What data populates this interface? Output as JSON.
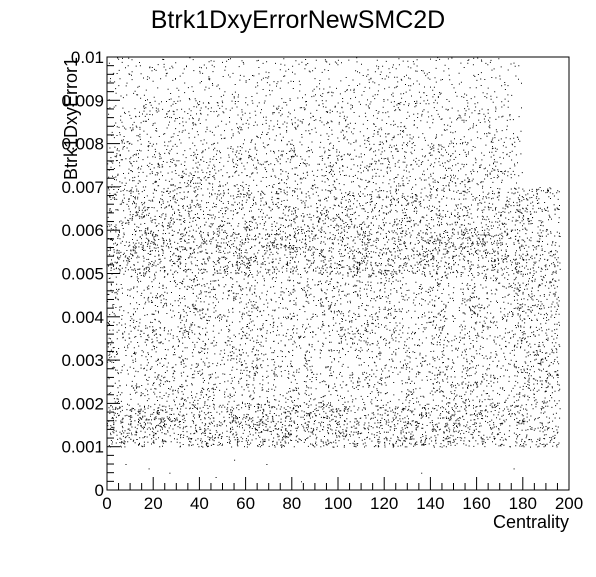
{
  "chart_data": {
    "type": "heatmap",
    "title": "Btrk1DxyErrorNewSMC2D",
    "xlabel": "Centrality",
    "ylabel": "Btrk1DxyError1",
    "xlim": [
      0,
      200
    ],
    "ylim": [
      0,
      0.01
    ],
    "x_ticks": [
      "0",
      "20",
      "40",
      "60",
      "80",
      "100",
      "120",
      "140",
      "160",
      "180",
      "200"
    ],
    "y_ticks": [
      "0",
      "0.001",
      "0.002",
      "0.003",
      "0.004",
      "0.005",
      "0.006",
      "0.007",
      "0.008",
      "0.009",
      "0.01"
    ],
    "grid": false,
    "legend": "none",
    "point_color": "#000000",
    "density_bands": [
      {
        "y_range": [
          0.001,
          0.002
        ],
        "x_range": [
          0,
          180
        ],
        "density": 0.55
      },
      {
        "y_range": [
          0.002,
          0.005
        ],
        "x_range": [
          0,
          180
        ],
        "density": 0.85
      },
      {
        "y_range": [
          0.005,
          0.006
        ],
        "x_range": [
          0,
          180
        ],
        "density": 0.55
      },
      {
        "y_range": [
          0.006,
          0.007
        ],
        "x_range": [
          0,
          180
        ],
        "density": 0.4
      },
      {
        "y_range": [
          0.007,
          0.008
        ],
        "x_range": [
          0,
          180
        ],
        "density": 0.3
      },
      {
        "y_range": [
          0.008,
          0.009
        ],
        "x_range": [
          0,
          180
        ],
        "density": 0.22
      },
      {
        "y_range": [
          0.009,
          0.01
        ],
        "x_range": [
          0,
          180
        ],
        "density": 0.14
      }
    ]
  }
}
